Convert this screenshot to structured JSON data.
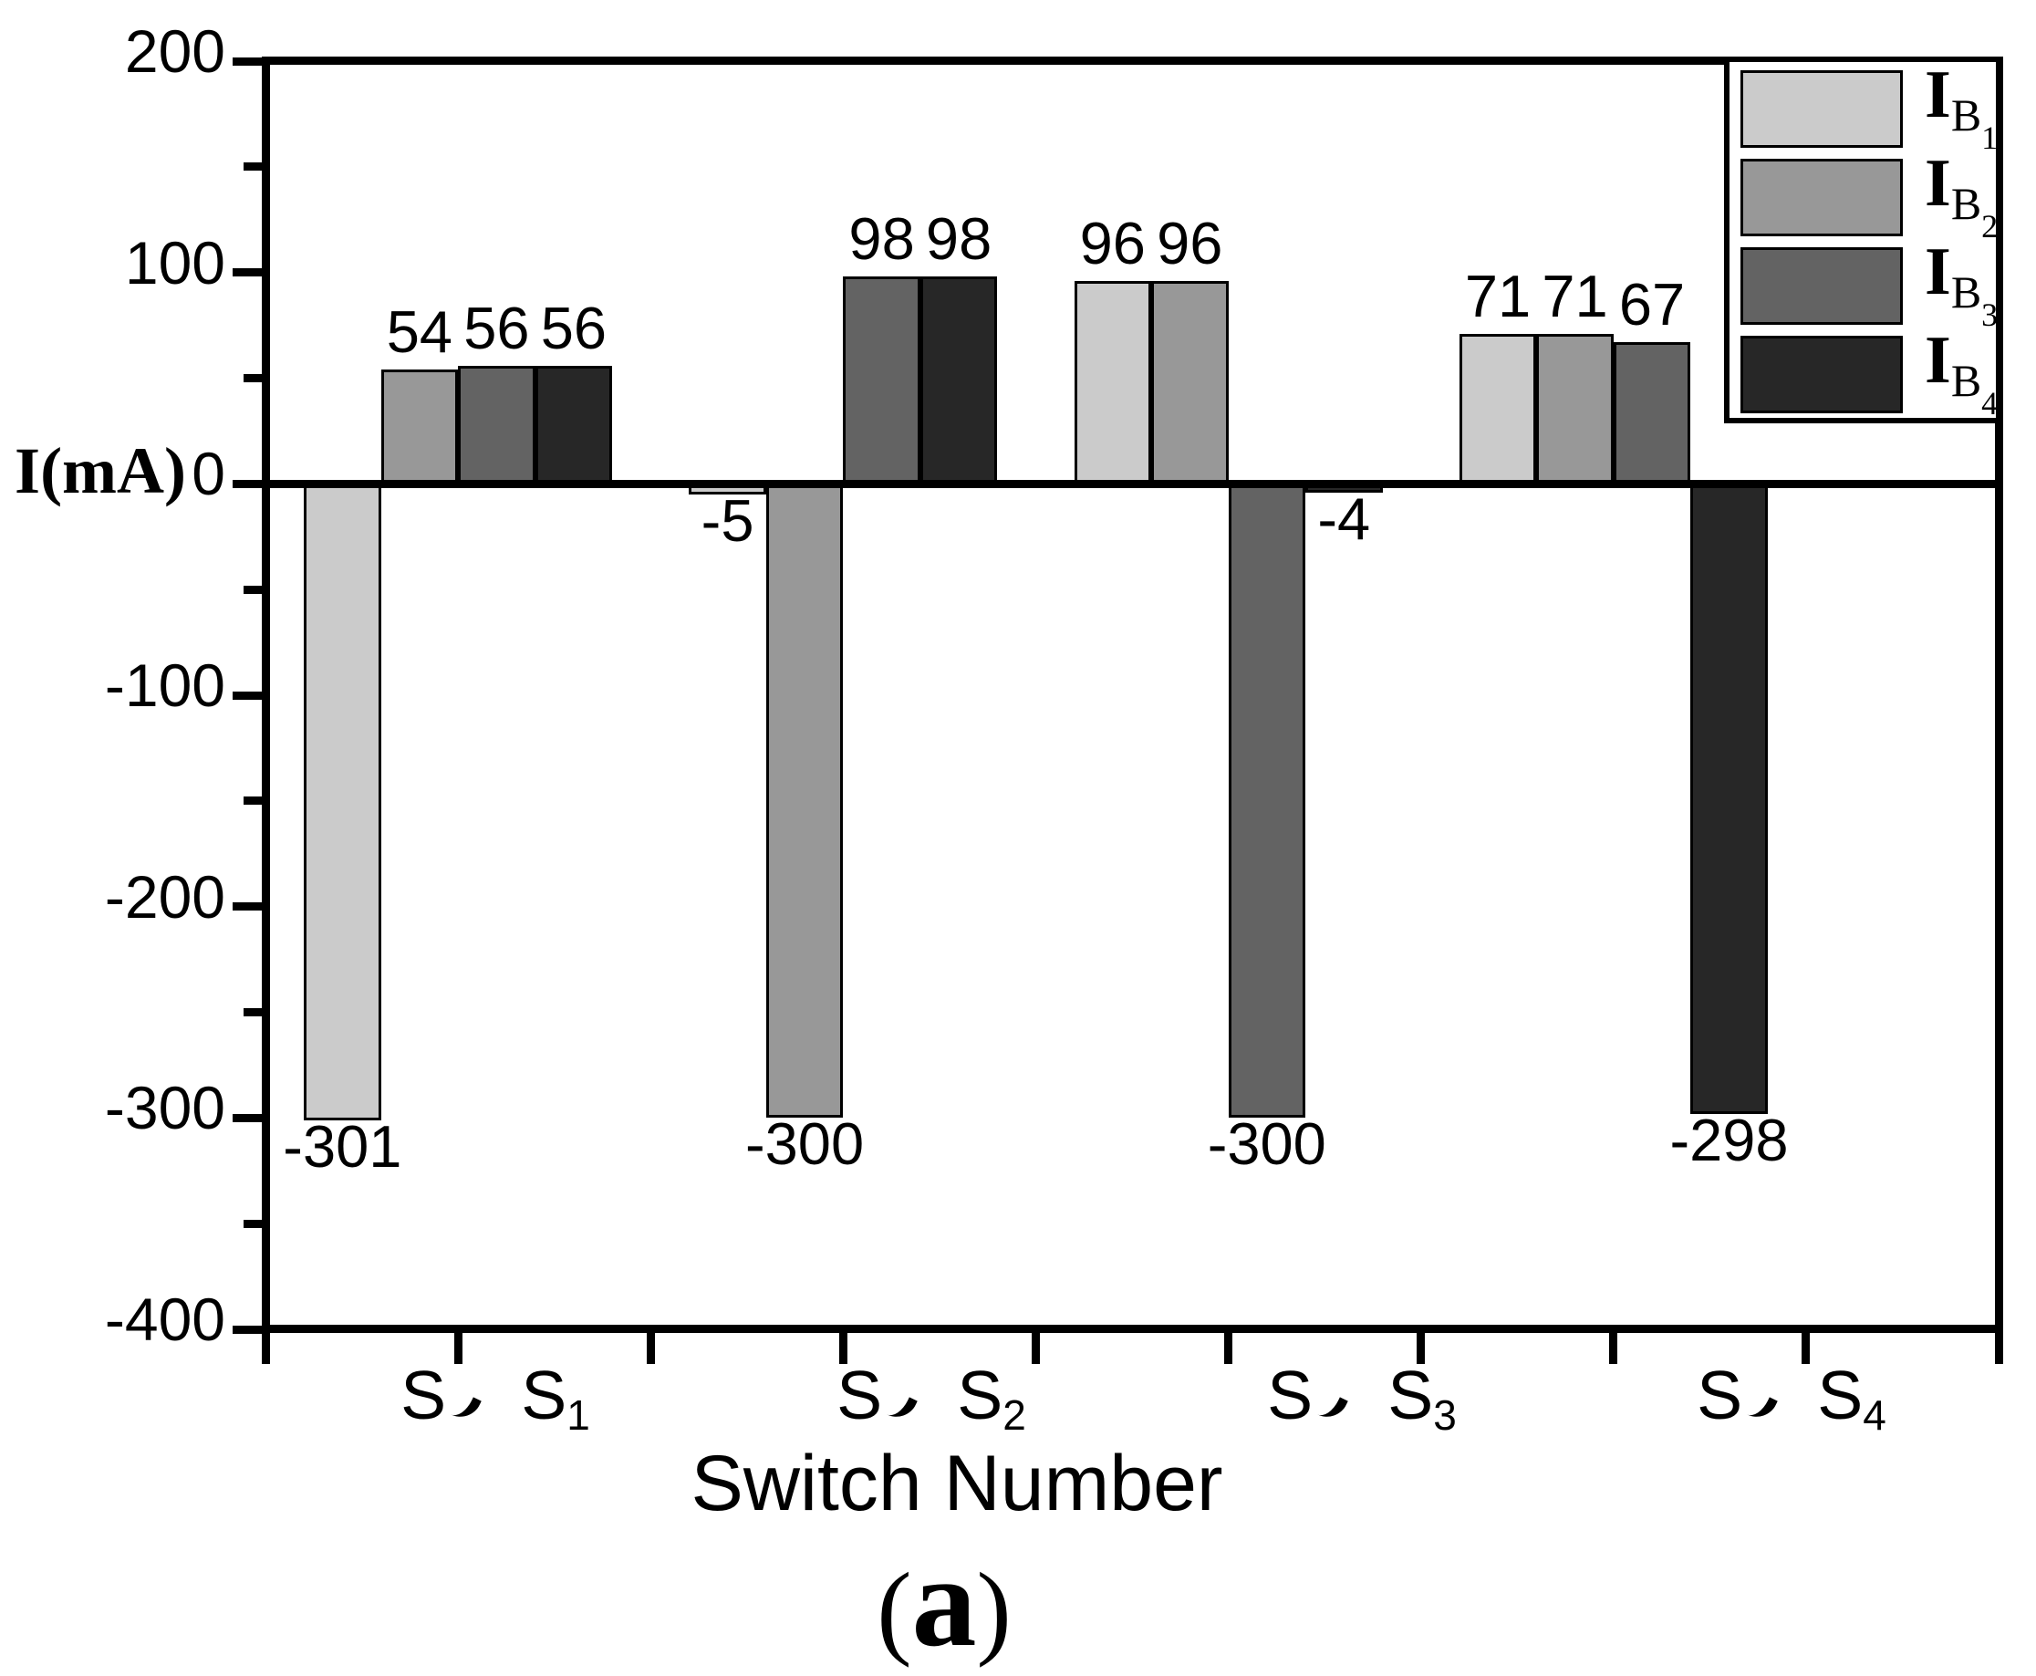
{
  "figure": {
    "caption": "(a)",
    "caption_open": "(",
    "caption_letter": "a",
    "caption_close": ")"
  },
  "chart_data": {
    "type": "bar",
    "title": "",
    "xlabel": "Switch Number",
    "ylabel": "I(mA)",
    "ylim": [
      -400,
      200
    ],
    "y_major_ticks": [
      200,
      100,
      0,
      -100,
      -200,
      -300,
      -400
    ],
    "y_minor_ticks": [
      150,
      50,
      -50,
      -150,
      -250,
      -350
    ],
    "grid": false,
    "legend_position": "top-right",
    "bar_value_labels_shown": true,
    "categories": [
      {
        "text": "S、S1",
        "main": "S",
        "separator": "、",
        "second": "S",
        "sub": "1"
      },
      {
        "text": "S、S2",
        "main": "S",
        "separator": "、",
        "second": "S",
        "sub": "2"
      },
      {
        "text": "S、S3",
        "main": "S",
        "separator": "、",
        "second": "S",
        "sub": "3"
      },
      {
        "text": "S、S4",
        "main": "S",
        "separator": "、",
        "second": "S",
        "sub": "4"
      }
    ],
    "series": [
      {
        "name": "IB1",
        "name_main": "I",
        "name_sub": "B",
        "name_subsub": "1",
        "color": "#cbcbcb",
        "values": [
          -301,
          -5,
          96,
          71
        ]
      },
      {
        "name": "IB2",
        "name_main": "I",
        "name_sub": "B",
        "name_subsub": "2",
        "color": "#989898",
        "values": [
          54,
          -300,
          96,
          71
        ]
      },
      {
        "name": "IB3",
        "name_main": "I",
        "name_sub": "B",
        "name_subsub": "3",
        "color": "#636363",
        "values": [
          56,
          98,
          -300,
          67
        ]
      },
      {
        "name": "IB4",
        "name_main": "I",
        "name_sub": "B",
        "name_subsub": "4",
        "color": "#272727",
        "values": [
          56,
          98,
          -4,
          -298
        ]
      }
    ]
  }
}
